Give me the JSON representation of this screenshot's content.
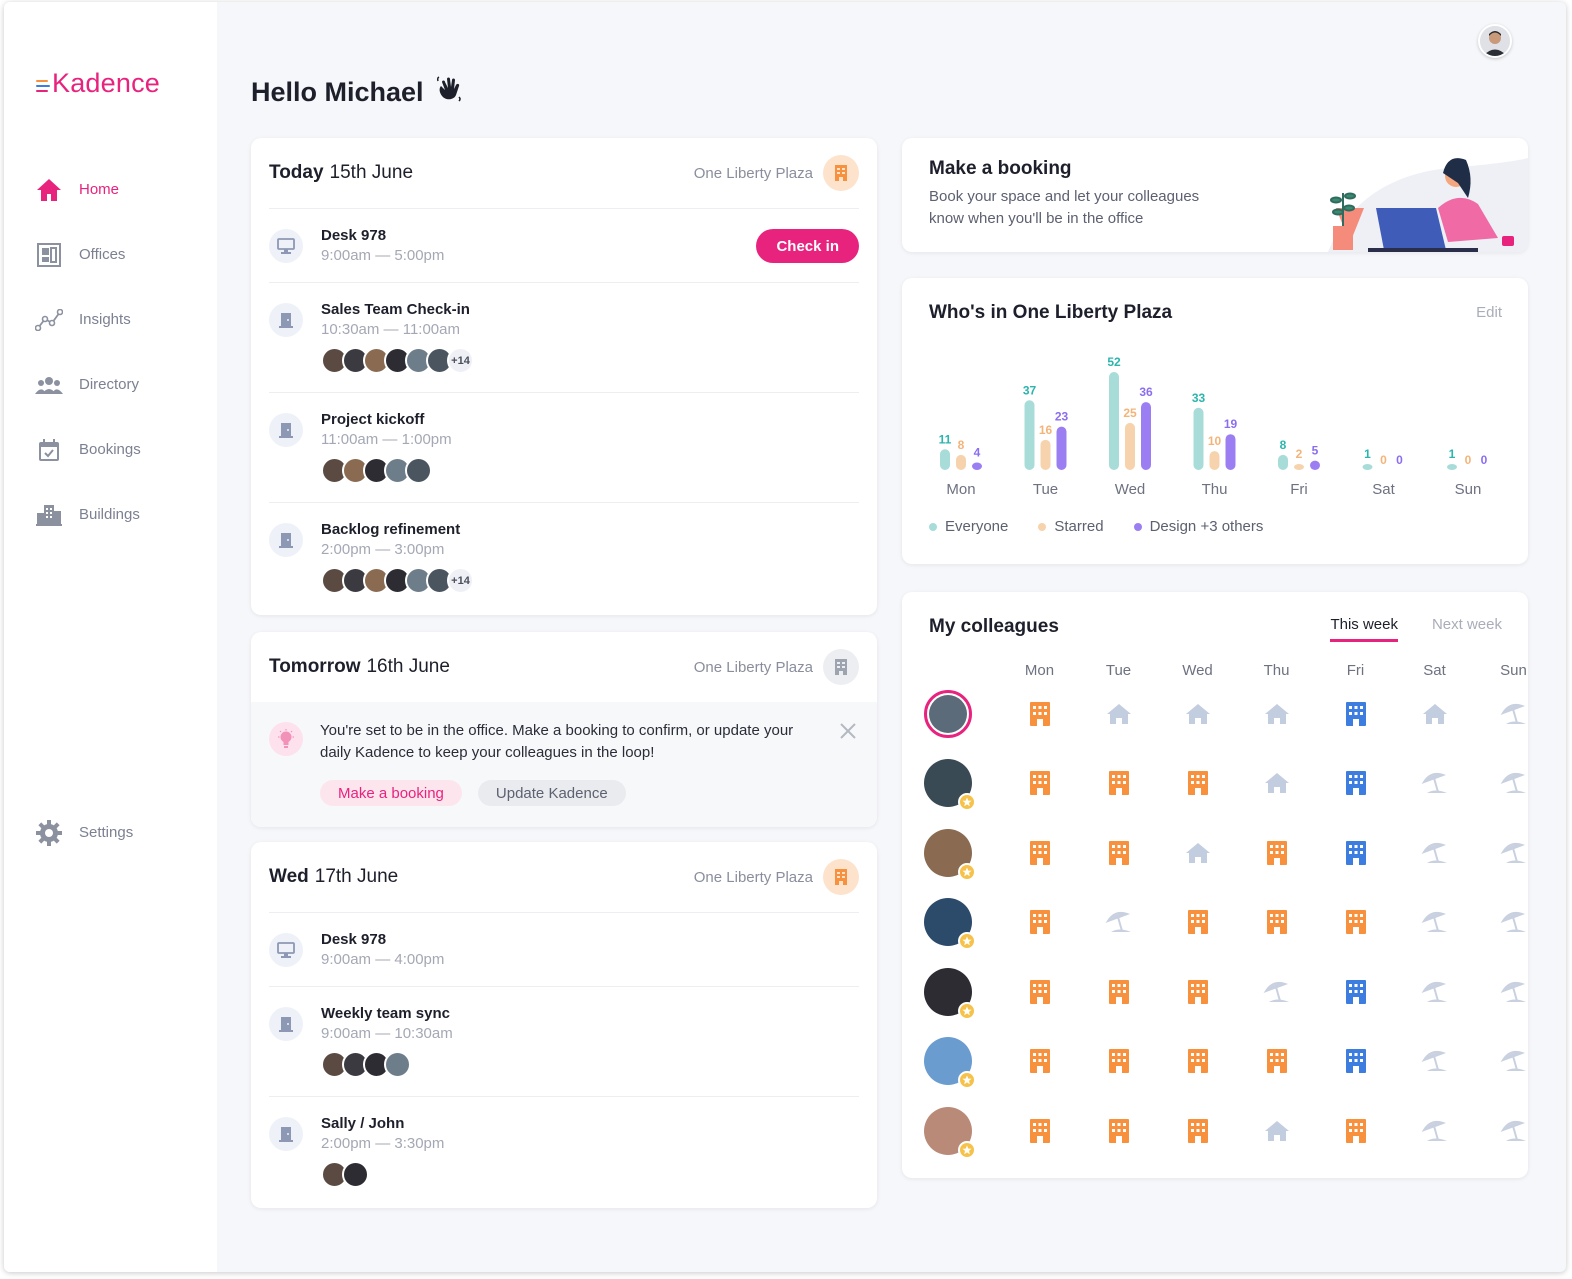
{
  "brand": {
    "name": "Kadence",
    "accent": "#e8237e"
  },
  "greeting": "Hello Michael",
  "nav": [
    {
      "label": "Home",
      "icon": "home-icon",
      "active": true
    },
    {
      "label": "Offices",
      "icon": "office-floorplan-icon"
    },
    {
      "label": "Insights",
      "icon": "insights-chart-icon"
    },
    {
      "label": "Directory",
      "icon": "people-icon"
    },
    {
      "label": "Bookings",
      "icon": "calendar-icon"
    },
    {
      "label": "Buildings",
      "icon": "buildings-icon"
    }
  ],
  "settings_label": "Settings",
  "today": {
    "day": "Today",
    "date": "15th June",
    "location": "One Liberty Plaza",
    "events": [
      {
        "title": "Desk 978",
        "time": "9:00am — 5:00pm",
        "type": "desk",
        "action": "Check in"
      },
      {
        "title": "Sales Team Check-in",
        "time": "10:30am — 11:00am",
        "type": "meeting",
        "more": "+14"
      },
      {
        "title": "Project kickoff",
        "time": "11:00am — 1:00pm",
        "type": "meeting"
      },
      {
        "title": "Backlog refinement",
        "time": "2:00pm — 3:00pm",
        "type": "meeting",
        "more": "+14"
      }
    ]
  },
  "tomorrow": {
    "day": "Tomorrow",
    "date": "16th June",
    "location": "One Liberty Plaza",
    "notice": "You're set to be in the office. Make a booking to confirm, or update your daily Kadence to keep your colleagues in the loop!",
    "make_booking": "Make a booking",
    "update_kadence": "Update Kadence"
  },
  "wed": {
    "day": "Wed",
    "date": "17th June",
    "location": "One Liberty Plaza",
    "events": [
      {
        "title": "Desk 978",
        "time": "9:00am — 4:00pm",
        "type": "desk"
      },
      {
        "title": "Weekly team sync",
        "time": "9:00am — 10:30am",
        "type": "meeting"
      },
      {
        "title": "Sally / John",
        "time": "2:00pm — 3:30pm",
        "type": "meeting"
      }
    ]
  },
  "booking_card": {
    "title": "Make a booking",
    "subtitle_line1": "Book your space and let your colleagues",
    "subtitle_line2": "know when you'll be in the office"
  },
  "whos_in": {
    "title": "Who's in One Liberty Plaza",
    "edit": "Edit",
    "legend": [
      "Everyone",
      "Starred",
      "Design +3 others"
    ]
  },
  "chart_data": {
    "type": "bar",
    "categories": [
      "Mon",
      "Tue",
      "Wed",
      "Thu",
      "Fri",
      "Sat",
      "Sun"
    ],
    "series": [
      {
        "name": "Everyone",
        "color": "#a8dcd9",
        "label_color": "#2bb5ad",
        "values": [
          11,
          37,
          52,
          33,
          8,
          1,
          1
        ]
      },
      {
        "name": "Starred",
        "color": "#f6d3ac",
        "label_color": "#f3b47a",
        "values": [
          8,
          16,
          25,
          10,
          2,
          0,
          0
        ]
      },
      {
        "name": "Design +3 others",
        "color": "#9b7ff2",
        "label_color": "#8b6ef0",
        "values": [
          4,
          23,
          36,
          19,
          5,
          0,
          0
        ]
      }
    ],
    "legend_position": "bottom-left"
  },
  "colleagues": {
    "title": "My colleagues",
    "tab_this_week": "This week",
    "tab_next_week": "Next week",
    "days": [
      "Mon",
      "Tue",
      "Wed",
      "Thu",
      "Fri",
      "Sat",
      "Sun"
    ],
    "rows": [
      {
        "me": true,
        "status": [
          "office",
          "home",
          "home",
          "home",
          "office-booked",
          "home",
          "away"
        ]
      },
      {
        "starred": true,
        "status": [
          "office",
          "office",
          "office",
          "home",
          "office-booked",
          "away",
          "away"
        ]
      },
      {
        "starred": true,
        "status": [
          "office",
          "office",
          "home",
          "office",
          "office-booked",
          "away",
          "away"
        ]
      },
      {
        "starred": true,
        "status": [
          "office",
          "away",
          "office",
          "office",
          "office",
          "away",
          "away"
        ]
      },
      {
        "starred": true,
        "status": [
          "office",
          "office",
          "office",
          "away",
          "office-booked",
          "away",
          "away"
        ]
      },
      {
        "starred": true,
        "status": [
          "office",
          "office",
          "office",
          "office",
          "office-booked",
          "away",
          "away"
        ]
      },
      {
        "starred": true,
        "status": [
          "office",
          "office",
          "office",
          "home",
          "office",
          "away",
          "away"
        ]
      }
    ],
    "status_colors": {
      "office": "#f7913e",
      "office-booked": "#3e7de0",
      "home": "#c3cde0",
      "away": "#c9d1e0"
    }
  }
}
